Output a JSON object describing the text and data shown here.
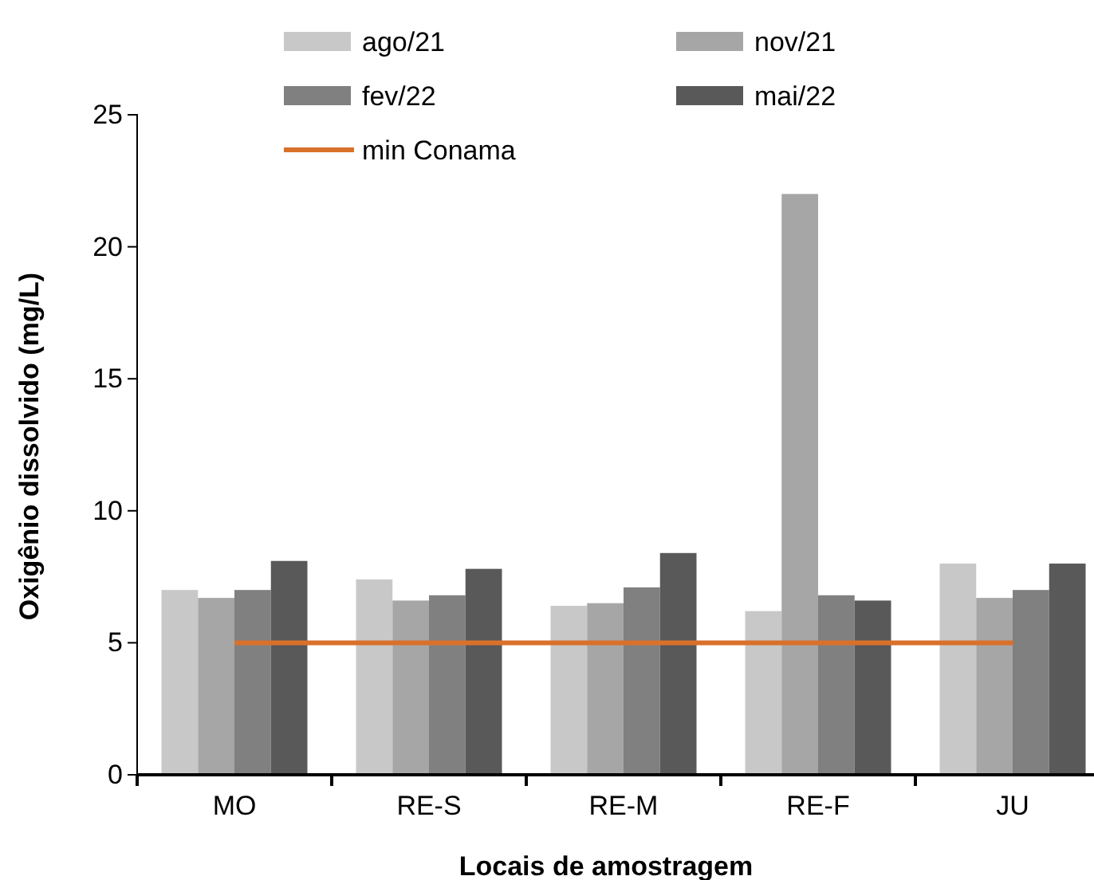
{
  "chart_data": {
    "type": "bar",
    "xlabel": "Locais de amostragem",
    "ylabel": "Oxigênio dissolvido (mg/L)",
    "categories": [
      "MO",
      "RE-S",
      "RE-M",
      "RE-F",
      "JU"
    ],
    "series": [
      {
        "name": "ago/21",
        "color": "#c8c8c8",
        "values": [
          7.0,
          7.4,
          6.4,
          6.2,
          8.0
        ]
      },
      {
        "name": "nov/21",
        "color": "#a6a6a6",
        "values": [
          6.7,
          6.6,
          6.5,
          22.0,
          6.7
        ]
      },
      {
        "name": "fev/22",
        "color": "#808080",
        "values": [
          7.0,
          6.8,
          7.1,
          6.8,
          7.0
        ]
      },
      {
        "name": "mai/22",
        "color": "#595959",
        "values": [
          8.1,
          7.8,
          8.4,
          6.6,
          8.0
        ]
      },
      {
        "name": "min Conama",
        "type": "line",
        "color": "#d9712b",
        "values": [
          5,
          5,
          5,
          5,
          5
        ]
      }
    ],
    "ylim": [
      0,
      25
    ],
    "yticks": [
      0,
      5,
      10,
      15,
      20,
      25
    ],
    "grid": false,
    "legend": "top"
  }
}
